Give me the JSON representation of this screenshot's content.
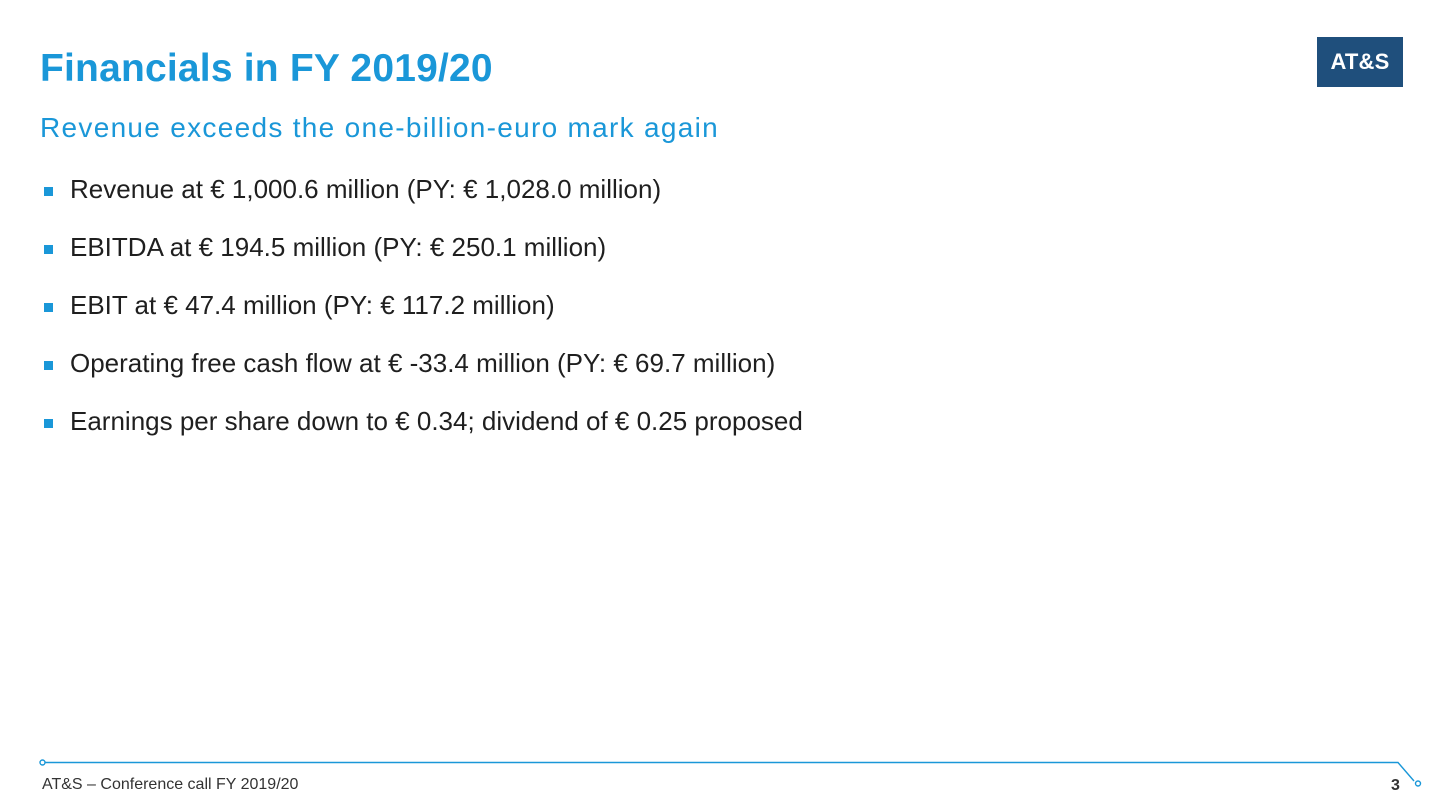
{
  "slide": {
    "title": "Financials in FY 2019/20",
    "subtitle": "Revenue exceeds the one-billion-euro mark again",
    "logo_text": "AT&S"
  },
  "bullets": [
    "Revenue at € 1,000.6 million (PY: € 1,028.0 million)",
    "EBITDA at € 194.5 million (PY: € 250.1 million)",
    "EBIT at € 47.4 million (PY: € 117.2 million)",
    "Operating free cash flow at € -33.4 million (PY: € 69.7 million)",
    "Earnings per share down to € 0.34; dividend of € 0.25 proposed"
  ],
  "footer": {
    "text": "AT&S – Conference call FY 2019/20",
    "page_number": "3"
  },
  "colors": {
    "accent": "#1a97d8",
    "logo_background": "#1f4f7c",
    "body_text": "#1f1f1f"
  }
}
